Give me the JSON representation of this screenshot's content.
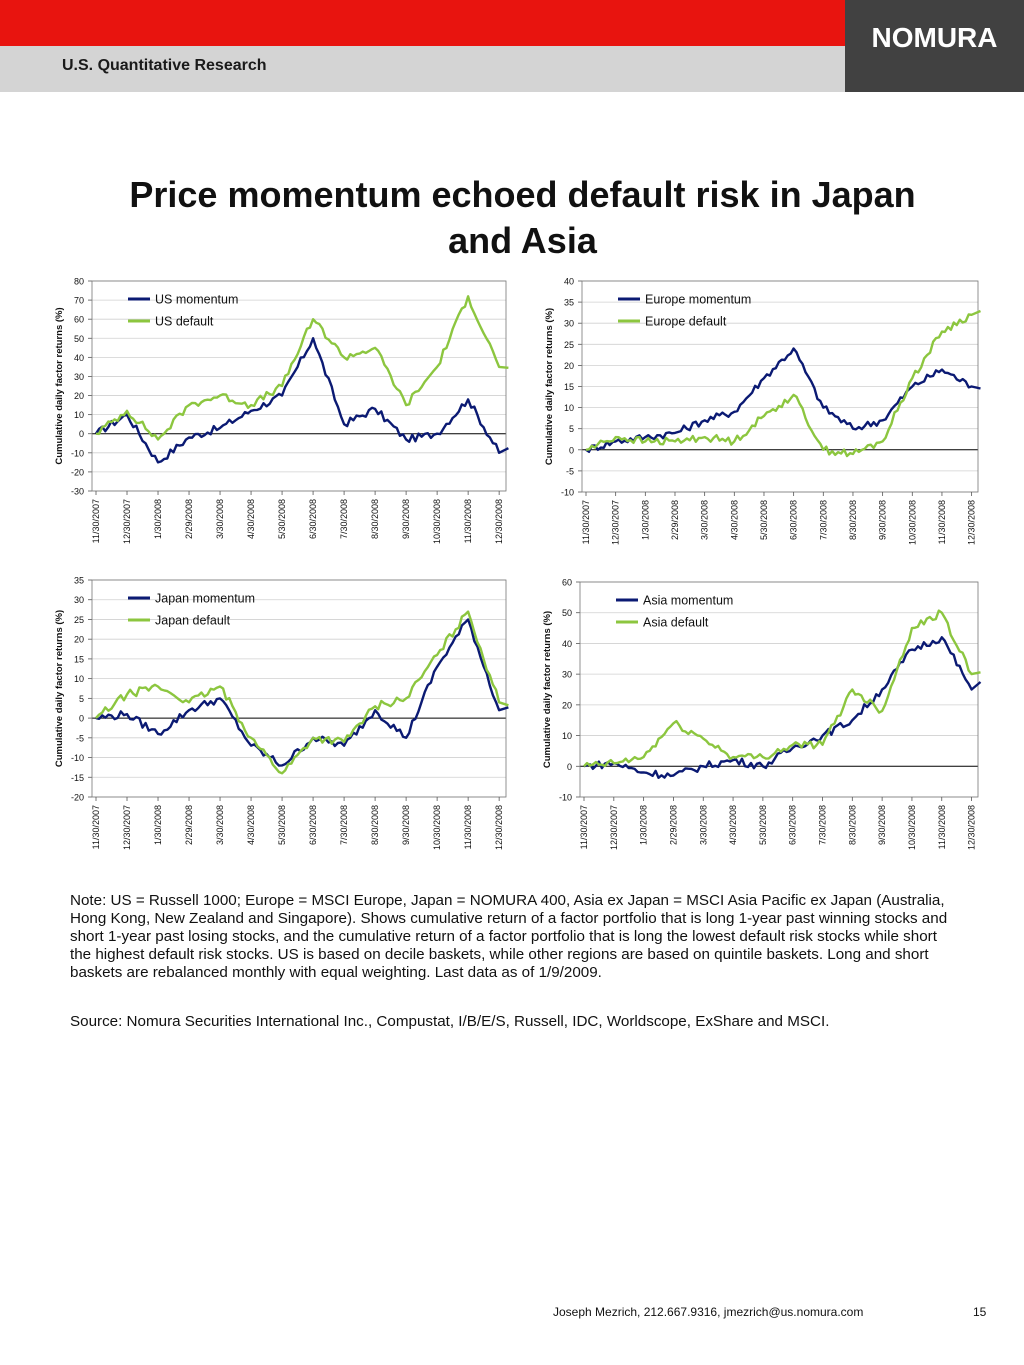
{
  "header": {
    "section": "U.S. Quantitative Research",
    "brand": "NOMURA"
  },
  "title": "Price momentum echoed default risk in Japan and Asia",
  "colors": {
    "momentum": "#0b1a73",
    "default": "#8cc63f",
    "header_red": "#e8140f",
    "header_grey": "#d4d4d4",
    "brand_box": "#414141"
  },
  "chart_data": [
    {
      "type": "line",
      "ylabel": "Cumulative daily factor returns (%)",
      "ylim": [
        -30,
        80
      ],
      "yticks": [
        -30,
        -20,
        -10,
        0,
        10,
        20,
        30,
        40,
        50,
        60,
        70,
        80
      ],
      "categories": [
        "11/30/2007",
        "12/30/2007",
        "1/30/2008",
        "2/29/2008",
        "3/30/2008",
        "4/30/2008",
        "5/30/2008",
        "6/30/2008",
        "7/30/2008",
        "8/30/2008",
        "9/30/2008",
        "10/30/2008",
        "11/30/2008",
        "12/30/2008"
      ],
      "legend_position": "top-left",
      "series": [
        {
          "name": "US momentum",
          "color": "#0b1a73",
          "values": [
            0,
            10,
            -15,
            -2,
            3,
            12,
            20,
            50,
            5,
            13,
            -3,
            0,
            18,
            -10
          ]
        },
        {
          "name": "US default",
          "color": "#8cc63f",
          "values": [
            0,
            12,
            -3,
            15,
            20,
            15,
            25,
            60,
            40,
            45,
            15,
            35,
            72,
            35
          ]
        }
      ]
    },
    {
      "type": "line",
      "ylabel": "Cumulative daily factor returns (%)",
      "ylim": [
        -10,
        40
      ],
      "yticks": [
        -10,
        -5,
        0,
        5,
        10,
        15,
        20,
        25,
        30,
        35,
        40
      ],
      "categories": [
        "11/30/2007",
        "12/30/2007",
        "1/30/2008",
        "2/29/2008",
        "3/30/2008",
        "4/30/2008",
        "5/30/2008",
        "6/30/2008",
        "7/30/2008",
        "8/30/2008",
        "9/30/2008",
        "10/30/2008",
        "11/30/2008",
        "12/30/2008"
      ],
      "legend_position": "top-left",
      "series": [
        {
          "name": "Europe momentum",
          "color": "#0b1a73",
          "values": [
            0,
            2,
            3,
            4,
            7,
            9,
            17,
            24,
            10,
            5,
            7,
            15,
            19,
            15
          ]
        },
        {
          "name": "Europe default",
          "color": "#8cc63f",
          "values": [
            0,
            3,
            2,
            2,
            3,
            2,
            8,
            13,
            0,
            -1,
            2,
            17,
            28,
            32
          ]
        }
      ]
    },
    {
      "type": "line",
      "ylabel": "Cumulative daily factor returns (%)",
      "ylim": [
        -20,
        35
      ],
      "yticks": [
        -20,
        -15,
        -10,
        -5,
        0,
        5,
        10,
        15,
        20,
        25,
        30,
        35
      ],
      "categories": [
        "11/30/2007",
        "12/30/2007",
        "1/30/2008",
        "2/29/2008",
        "3/30/2008",
        "4/30/2008",
        "5/30/2008",
        "6/30/2008",
        "7/30/2008",
        "8/30/2008",
        "9/30/2008",
        "10/30/2008",
        "11/30/2008",
        "12/30/2008"
      ],
      "legend_position": "top-left",
      "series": [
        {
          "name": "Japan momentum",
          "color": "#0b1a73",
          "values": [
            0,
            1,
            -4,
            2,
            5,
            -7,
            -12,
            -5,
            -7,
            2,
            -5,
            13,
            25,
            2
          ]
        },
        {
          "name": "Japan default",
          "color": "#8cc63f",
          "values": [
            0,
            6,
            8,
            4,
            8,
            -5,
            -14,
            -5,
            -6,
            3,
            5,
            16,
            27,
            4
          ]
        }
      ]
    },
    {
      "type": "line",
      "ylabel": "Cumulative daily factor returns (%)",
      "ylim": [
        -10,
        60
      ],
      "yticks": [
        -10,
        0,
        10,
        20,
        30,
        40,
        50,
        60
      ],
      "categories": [
        "11/30/2007",
        "12/30/2007",
        "1/30/2008",
        "2/29/2008",
        "3/30/2008",
        "4/30/2008",
        "5/30/2008",
        "6/30/2008",
        "7/30/2008",
        "8/30/2008",
        "9/30/2008",
        "10/30/2008",
        "11/30/2008",
        "12/30/2008"
      ],
      "legend_position": "top-left",
      "series": [
        {
          "name": "Asia momentum",
          "color": "#0b1a73",
          "values": [
            0,
            1,
            -2,
            -3,
            0,
            2,
            0,
            6,
            10,
            15,
            25,
            38,
            42,
            25
          ]
        },
        {
          "name": "Asia default",
          "color": "#8cc63f",
          "values": [
            0,
            1,
            3,
            14,
            9,
            3,
            3,
            7,
            7,
            25,
            18,
            45,
            50,
            30
          ]
        }
      ]
    }
  ],
  "note": "Note: US = Russell 1000; Europe = MSCI Europe, Japan = NOMURA 400, Asia ex Japan = MSCI Asia Pacific ex Japan (Australia, Hong Kong, New Zealand and Singapore). Shows cumulative return of a factor portfolio that is long 1-year past winning stocks and short 1-year past losing stocks, and the cumulative return of a factor portfolio that is long the lowest default risk stocks while short the highest default risk stocks. US is based on decile baskets, while other regions are based on quintile baskets. Long and short baskets are rebalanced monthly with equal weighting. Last data as of 1/9/2009.",
  "source": "Source: Nomura Securities International Inc., Compustat, I/B/E/S, Russell, IDC, Worldscope, ExShare and MSCI.",
  "footer": {
    "contact": "Joseph Mezrich, 212.667.9316, jmezrich@us.nomura.com",
    "page": "15"
  }
}
